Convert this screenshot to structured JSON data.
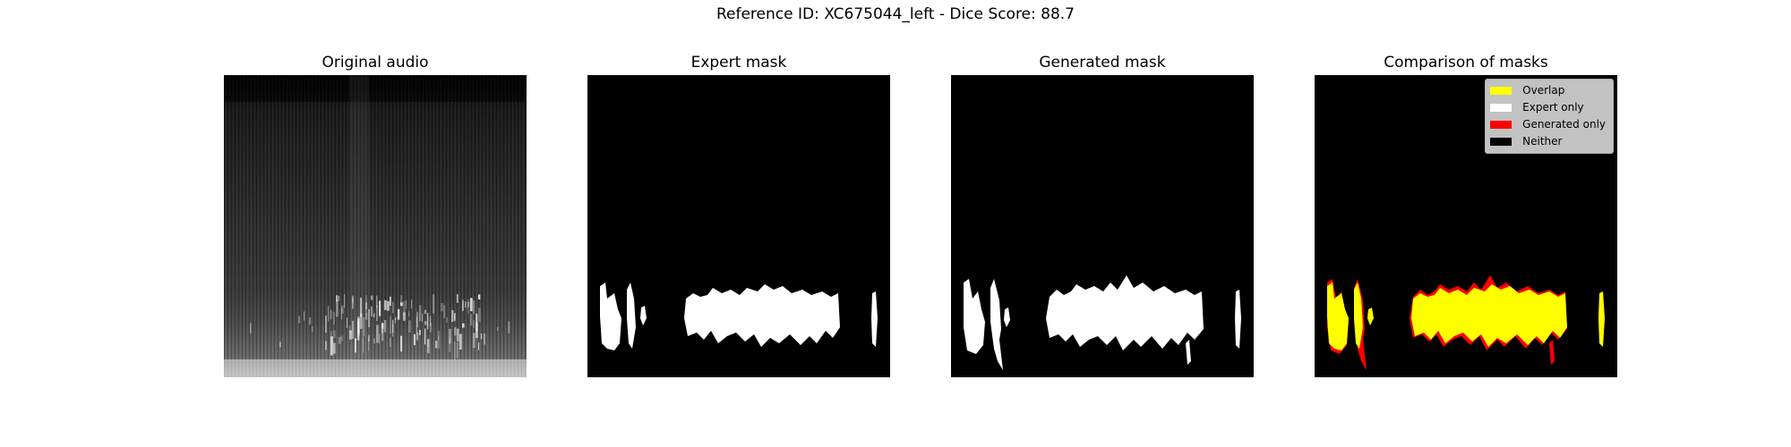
{
  "suptitle": "Reference ID: XC675044_left - Dice Score: 88.7",
  "panels": [
    {
      "title": "Original audio"
    },
    {
      "title": "Expert mask"
    },
    {
      "title": "Generated mask"
    },
    {
      "title": "Comparison of masks"
    }
  ],
  "legend": {
    "items": [
      {
        "label": "Overlap",
        "color": "#ffff00"
      },
      {
        "label": "Expert only",
        "color": "#ffffff"
      },
      {
        "label": "Generated only",
        "color": "#ff0000"
      },
      {
        "label": "Neither",
        "color": "#000000"
      }
    ]
  },
  "colors": {
    "background": "#000000",
    "mask": "#ffffff",
    "overlap": "#ffff00",
    "generated_only": "#ff0000"
  }
}
